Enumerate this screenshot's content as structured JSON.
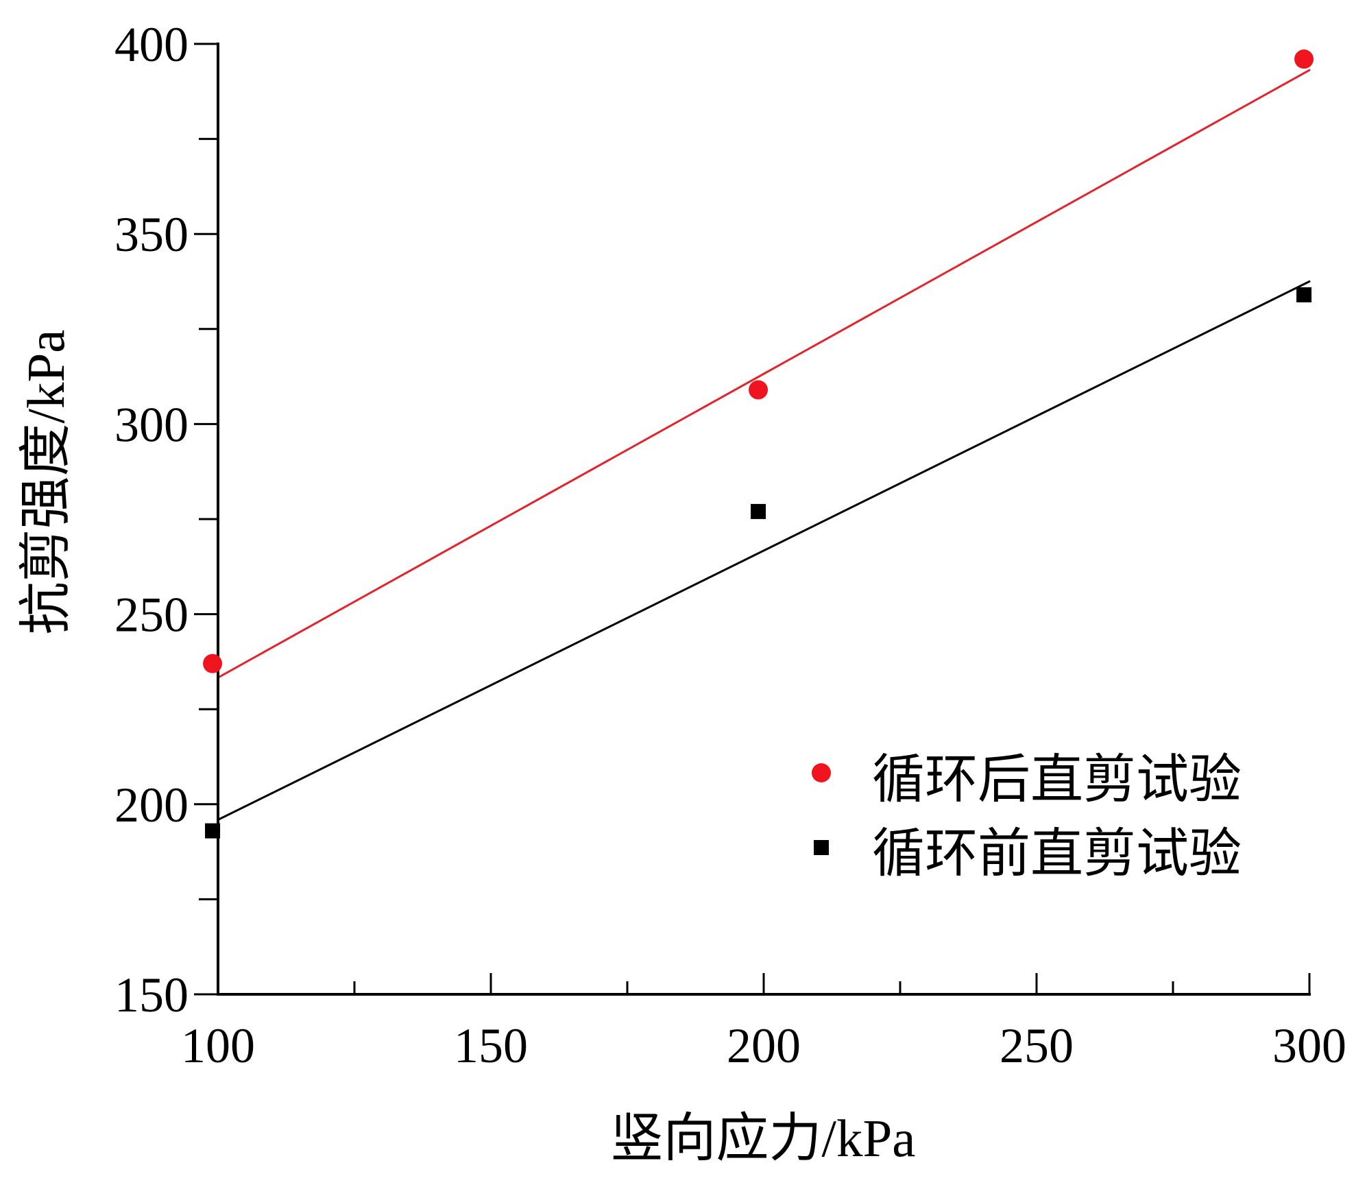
{
  "chart_data": {
    "type": "scatter",
    "xlabel": "竖向应力/kPa",
    "ylabel": "抗剪强度/kPa",
    "xlim": [
      100,
      300
    ],
    "ylim": [
      150,
      400
    ],
    "xticks": [
      100,
      150,
      200,
      250,
      300
    ],
    "yticks": [
      150,
      200,
      250,
      300,
      350,
      400
    ],
    "x_minor_step": 25,
    "y_minor_step": 25,
    "grid": false,
    "legend_position": "bottom-right",
    "series": [
      {
        "name": "循环后直剪试验",
        "marker": "circle",
        "color": "#f0141e",
        "x": [
          99,
          199,
          299
        ],
        "y": [
          237,
          309,
          396
        ]
      },
      {
        "name": "循环前直剪试验",
        "marker": "square",
        "color": "#000000",
        "x": [
          99,
          199,
          299
        ],
        "y": [
          193,
          277,
          334
        ]
      }
    ],
    "fit_lines": [
      {
        "color": "#e3242b",
        "x": [
          100,
          300
        ],
        "y": [
          233.3,
          393.1
        ]
      },
      {
        "color": "#000000",
        "x": [
          100,
          300
        ],
        "y": [
          195.9,
          337.5
        ]
      }
    ]
  }
}
